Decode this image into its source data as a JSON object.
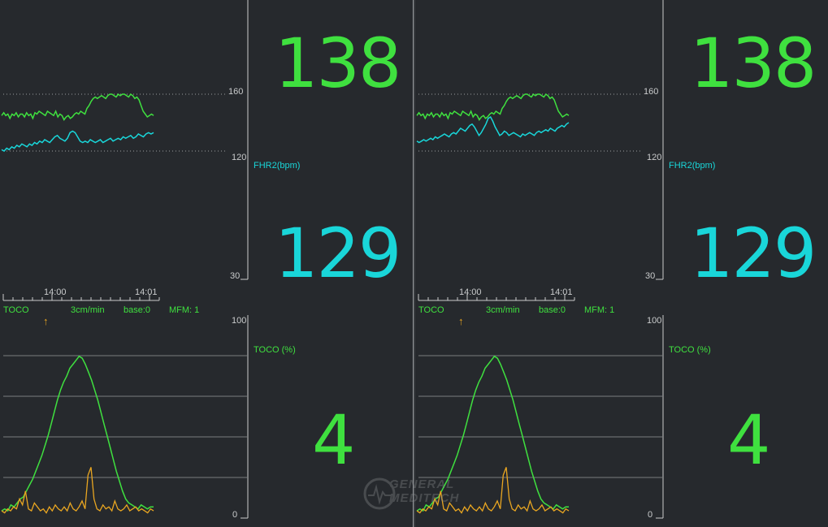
{
  "colors": {
    "background": "#26292d",
    "fhr1": "#3fe03f",
    "fhr2": "#19d6d9",
    "toco": "#3fe03f",
    "fm": "#e9a621",
    "grid": "#7a7d80"
  },
  "panels": [
    {
      "fhr1_value": "138",
      "fhr2_value": "129",
      "toco_value": "4",
      "fhr2_label": "FHR2(bpm)",
      "toco_label": "TOCO (%)",
      "fhr_scale": {
        "top": "160",
        "mid": "120",
        "bottom": "30"
      },
      "toco_scale": {
        "top": "100",
        "bottom": "0"
      },
      "time_labels": [
        "14:00",
        "14:01"
      ],
      "status": {
        "toco": "TOCO",
        "speed": "3cm/min",
        "base": "base:0",
        "mfm": "MFM: 1"
      },
      "fm_marker": "↑",
      "fhr1_trace": [
        145,
        147,
        145,
        146,
        143,
        146,
        145,
        147,
        144,
        146,
        146,
        144,
        147,
        145,
        146,
        143,
        147,
        146,
        148,
        147,
        146,
        145,
        148,
        147,
        146,
        145,
        148,
        144,
        146,
        145,
        142,
        144,
        145,
        143,
        144,
        146,
        147,
        146,
        148,
        147,
        146,
        150,
        152,
        155,
        157,
        158,
        157,
        158,
        159,
        158,
        157,
        159,
        160,
        160,
        159,
        158,
        160,
        159,
        160,
        160,
        159,
        158,
        160,
        159,
        157,
        158,
        156,
        152,
        148,
        146,
        144,
        145,
        146,
        145
      ],
      "fhr2_trace": [
        121,
        120,
        122,
        121,
        123,
        122,
        124,
        123,
        125,
        124,
        123,
        125,
        124,
        126,
        125,
        127,
        126,
        128,
        127,
        126,
        128,
        130,
        131,
        129,
        128,
        127,
        129,
        133,
        134,
        133,
        130,
        127,
        126,
        127,
        126,
        128,
        127,
        126,
        127,
        128,
        126,
        127,
        128,
        129,
        127,
        128,
        129,
        128,
        130,
        129,
        130,
        131,
        129,
        130,
        132,
        131,
        130,
        132,
        133,
        132,
        133
      ]
    },
    {
      "fhr1_value": "138",
      "fhr2_value": "129",
      "toco_value": "4",
      "fhr2_label": "FHR2(bpm)",
      "toco_label": "TOCO (%)",
      "fhr_scale": {
        "top": "160",
        "mid": "120",
        "bottom": "30"
      },
      "toco_scale": {
        "top": "100",
        "bottom": "0"
      },
      "time_labels": [
        "14:00",
        "14:01"
      ],
      "status": {
        "toco": "TOCO",
        "speed": "3cm/min",
        "base": "base:0",
        "mfm": "MFM: 1"
      },
      "fm_marker": "↑",
      "fhr1_trace": [
        145,
        147,
        145,
        146,
        143,
        146,
        145,
        147,
        144,
        146,
        146,
        144,
        147,
        145,
        146,
        143,
        147,
        146,
        148,
        147,
        146,
        145,
        148,
        147,
        146,
        145,
        148,
        144,
        146,
        145,
        142,
        144,
        145,
        143,
        144,
        146,
        147,
        146,
        148,
        147,
        146,
        150,
        152,
        155,
        157,
        158,
        157,
        158,
        159,
        158,
        157,
        159,
        160,
        160,
        159,
        158,
        160,
        159,
        160,
        160,
        159,
        158,
        160,
        159,
        157,
        158,
        156,
        152,
        148,
        146,
        144,
        145,
        146,
        145
      ],
      "fhr2_trace": [
        127,
        126,
        127,
        128,
        127,
        128,
        129,
        128,
        130,
        129,
        130,
        131,
        132,
        131,
        130,
        132,
        133,
        132,
        134,
        136,
        135,
        134,
        136,
        138,
        139,
        137,
        134,
        131,
        133,
        136,
        139,
        143,
        144,
        141,
        137,
        134,
        131,
        132,
        134,
        133,
        131,
        132,
        133,
        132,
        131,
        130,
        132,
        131,
        132,
        133,
        132,
        131,
        133,
        134,
        133,
        134,
        135,
        134,
        136,
        135,
        134,
        136,
        137,
        138,
        137,
        139,
        140
      ]
    }
  ],
  "toco_trace": [
    2,
    3,
    2,
    5,
    4,
    6,
    8,
    9,
    12,
    15,
    18,
    22,
    26,
    30,
    35,
    40,
    46,
    52,
    58,
    63,
    67,
    70,
    74,
    76,
    78,
    80,
    79,
    76,
    72,
    68,
    63,
    58,
    52,
    46,
    40,
    34,
    28,
    22,
    17,
    12,
    8,
    6,
    5,
    4,
    3,
    5,
    4,
    3,
    4,
    4
  ],
  "fm_trace": [
    2,
    1,
    3,
    2,
    4,
    3,
    8,
    5,
    12,
    3,
    2,
    6,
    4,
    2,
    3,
    1,
    4,
    2,
    5,
    3,
    2,
    4,
    2,
    6,
    3,
    2,
    4,
    7,
    3,
    20,
    24,
    8,
    3,
    2,
    5,
    3,
    4,
    2,
    7,
    3,
    2,
    3,
    5,
    2,
    3,
    4,
    2,
    3,
    2,
    1,
    3,
    2
  ],
  "watermark": "GENERAL MEDITECH"
}
